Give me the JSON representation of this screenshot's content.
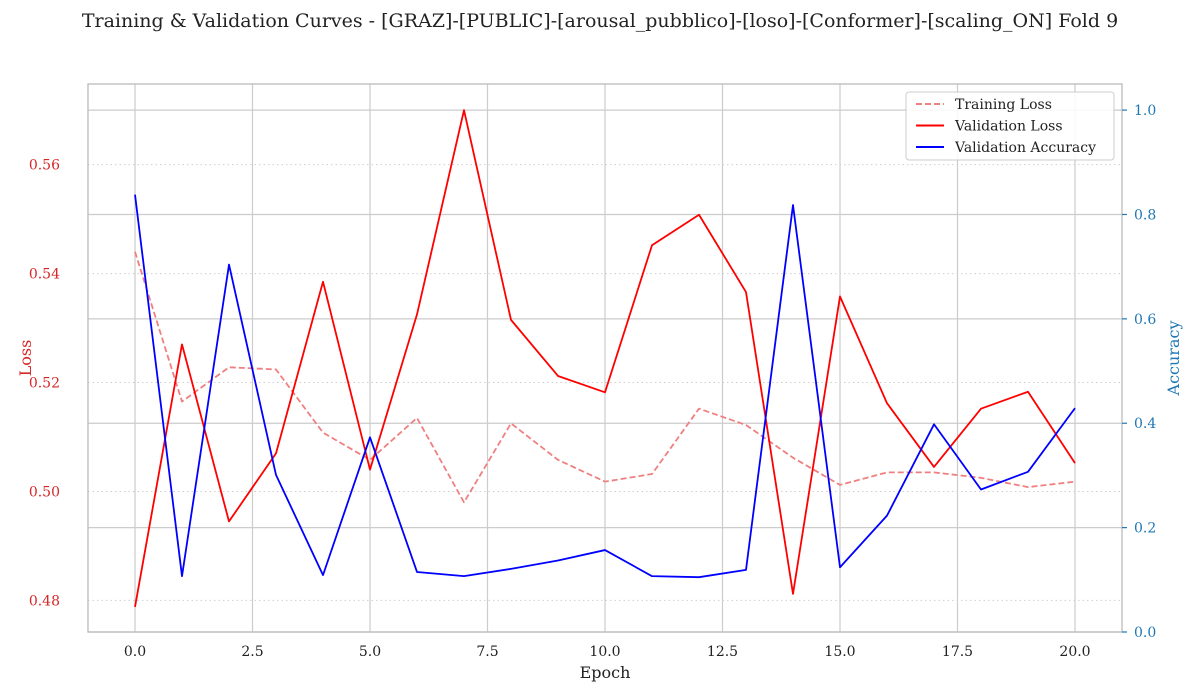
{
  "chart_data": {
    "type": "line",
    "title": "Training & Validation Curves - [GRAZ]-[PUBLIC]-[arousal_pubblico]-[loso]-[Conformer]-[scaling_ON] Fold 9",
    "xlabel": "Epoch",
    "ylabel_left": "Loss",
    "ylabel_right": "Accuracy",
    "xlim": [
      -1.0,
      21.0
    ],
    "ylim_left": [
      0.4742,
      0.5748
    ],
    "ylim_right": [
      0.0,
      1.05
    ],
    "x_ticks": [
      0,
      2.5,
      5,
      7.5,
      10,
      12.5,
      15,
      17.5,
      20
    ],
    "x_tick_labels": [
      "0.0",
      "2.5",
      "5.0",
      "7.5",
      "10.0",
      "12.5",
      "15.0",
      "17.5",
      "20.0"
    ],
    "y_left_ticks": [
      0.48,
      0.5,
      0.52,
      0.54,
      0.56
    ],
    "y_left_tick_labels": [
      "0.48",
      "0.50",
      "0.52",
      "0.54",
      "0.56"
    ],
    "y_right_ticks": [
      0.0,
      0.2,
      0.4,
      0.6,
      0.8,
      1.0
    ],
    "y_right_tick_labels": [
      "0.0",
      "0.2",
      "0.4",
      "0.6",
      "0.8",
      "1.0"
    ],
    "grid": true,
    "legend_position": "upper right",
    "x": [
      0,
      1,
      2,
      3,
      4,
      5,
      6,
      7,
      8,
      9,
      10,
      11,
      12,
      13,
      14,
      15,
      16,
      17,
      18,
      19,
      20
    ],
    "series": [
      {
        "name": "Training Loss",
        "axis": "left",
        "color": "#f08080",
        "dash": true,
        "values": [
          0.544,
          0.5165,
          0.5228,
          0.5224,
          0.5108,
          0.5058,
          0.5135,
          0.498,
          0.5125,
          0.5058,
          0.5018,
          0.5032,
          0.5152,
          0.5122,
          0.5062,
          0.5012,
          0.5035,
          0.5035,
          0.5025,
          0.5008,
          0.5018
        ]
      },
      {
        "name": "Validation Loss",
        "axis": "left",
        "color": "#ff0000",
        "dash": false,
        "values": [
          0.4788,
          0.527,
          0.4945,
          0.507,
          0.5385,
          0.504,
          0.5325,
          0.57,
          0.5315,
          0.5212,
          0.5182,
          0.5452,
          0.5508,
          0.5366,
          0.4812,
          0.5358,
          0.5162,
          0.5045,
          0.5152,
          0.5183,
          0.5052
        ]
      },
      {
        "name": "Validation Accuracy",
        "axis": "right",
        "color": "#0000ff",
        "dash": false,
        "values": [
          0.838,
          0.107,
          0.704,
          0.301,
          0.109,
          0.373,
          0.115,
          0.107,
          0.121,
          0.137,
          0.157,
          0.107,
          0.105,
          0.119,
          0.818,
          0.124,
          0.223,
          0.398,
          0.273,
          0.307,
          0.429
        ]
      }
    ],
    "colors": {
      "left_axis": "#d62728",
      "right_axis": "#1f77b4",
      "grid": "#cccccc",
      "frame": "#bbbbbb"
    }
  }
}
